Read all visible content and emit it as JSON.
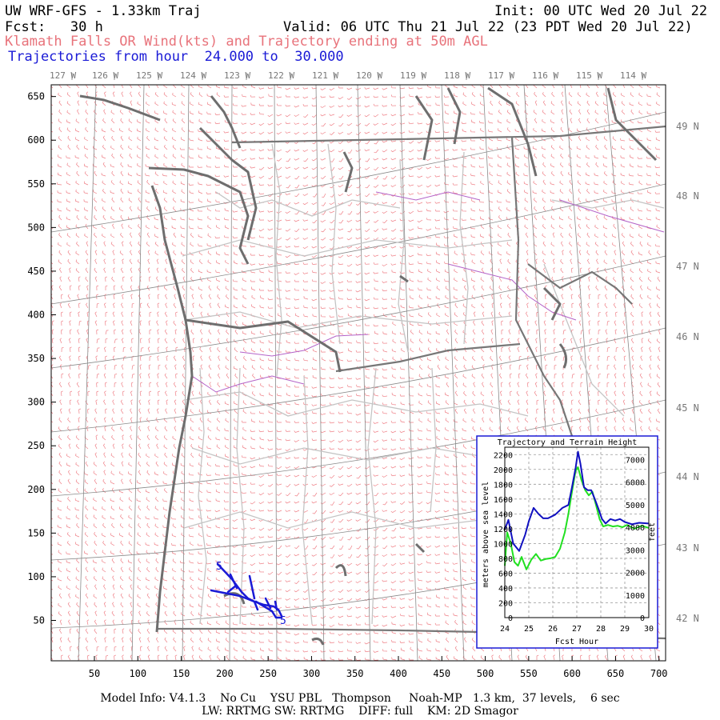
{
  "header": {
    "title": "UW WRF-GFS - 1.33km Traj",
    "init": "Init: 00 UTC Wed 20 Jul 22",
    "fcst": "Fcst:   30 h",
    "valid": "Valid: 06 UTC Thu 21 Jul 22 (23 PDT Wed 20 Jul 22)",
    "subtitle": "Klamath Falls OR Wind(kts) and Trajectory ending at 50m AGL",
    "traj_range": "Trajectories from hour  24.000 to  30.000"
  },
  "map": {
    "lon_labels": [
      "127 W",
      "126 W",
      "125 W",
      "124 W",
      "123 W",
      "122 W",
      "121 W",
      "120 W",
      "119 W",
      "118 W",
      "117 W",
      "116 W",
      "115 W",
      "114 W"
    ],
    "lat_labels": [
      "49 N",
      "48 N",
      "47 N",
      "46 N",
      "45 N",
      "44 N",
      "43 N",
      "42 N"
    ],
    "y_ticks": [
      "650",
      "600",
      "550",
      "500",
      "450",
      "400",
      "350",
      "300",
      "250",
      "200",
      "150",
      "100",
      "50"
    ],
    "x_ticks": [
      "50",
      "100",
      "150",
      "200",
      "250",
      "300",
      "350",
      "400",
      "450",
      "500",
      "550",
      "600",
      "650",
      "700"
    ],
    "trajectory_labels": [
      "5",
      "5"
    ],
    "colors": {
      "wind_barbs": "#ef7f86",
      "trajectory": "#1a1ad6",
      "coast": "#707070",
      "borders": "#b0b0b0",
      "rivers": "#b060c0"
    }
  },
  "inset": {
    "title": "Trajectory and Terrain Height",
    "ylabel_left": "meters above sea level",
    "ylabel_right": "feet",
    "xlabel": "Fcst Hour",
    "left_ticks": [
      "2200",
      "2000",
      "1800",
      "1600",
      "1400",
      "1200",
      "1000",
      "800",
      "600",
      "400",
      "200",
      "0"
    ],
    "right_ticks": [
      "7000",
      "6000",
      "5000",
      "4000",
      "3000",
      "2000",
      "1000",
      "0"
    ],
    "x_ticks": [
      "24",
      "25",
      "26",
      "27",
      "28",
      "29",
      "30"
    ]
  },
  "chart_data": {
    "type": "line",
    "title": "Trajectory and Terrain Height",
    "xlabel": "Fcst Hour",
    "ylabel": "meters above sea level",
    "xlim": [
      24,
      30
    ],
    "ylim": [
      0,
      2300
    ],
    "grid": true,
    "series": [
      {
        "color": "#1010c0",
        "x": [
          24.0,
          24.15,
          24.35,
          24.6,
          24.85,
          25.0,
          25.2,
          25.4,
          25.6,
          25.8,
          26.1,
          26.4,
          26.65,
          26.8,
          26.95,
          27.05,
          27.15,
          27.3,
          27.45,
          27.6,
          27.75,
          27.9,
          28.05,
          28.2,
          28.4,
          28.6,
          28.8,
          29.0,
          29.3,
          29.6,
          30.0
        ],
        "y": [
          1190,
          1320,
          1000,
          900,
          1120,
          1300,
          1480,
          1400,
          1340,
          1340,
          1390,
          1480,
          1520,
          1760,
          2020,
          2240,
          2080,
          1760,
          1720,
          1720,
          1600,
          1470,
          1330,
          1270,
          1330,
          1310,
          1330,
          1290,
          1260,
          1280,
          1270
        ]
      },
      {
        "color": "#20e020",
        "x": [
          24.0,
          24.1,
          24.25,
          24.4,
          24.55,
          24.7,
          24.9,
          25.1,
          25.3,
          25.5,
          25.7,
          25.9,
          26.1,
          26.3,
          26.5,
          26.65,
          26.8,
          26.95,
          27.05,
          27.2,
          27.35,
          27.5,
          27.65,
          27.8,
          27.95,
          28.1,
          28.3,
          28.5,
          28.7,
          28.9,
          29.1,
          29.4,
          29.7,
          30.0
        ],
        "y": [
          700,
          1150,
          1000,
          750,
          700,
          820,
          650,
          780,
          860,
          770,
          790,
          800,
          820,
          930,
          1150,
          1400,
          1700,
          1980,
          2030,
          1850,
          1720,
          1650,
          1700,
          1520,
          1330,
          1230,
          1250,
          1230,
          1240,
          1220,
          1250,
          1200,
          1240,
          1210
        ]
      }
    ]
  }
}
